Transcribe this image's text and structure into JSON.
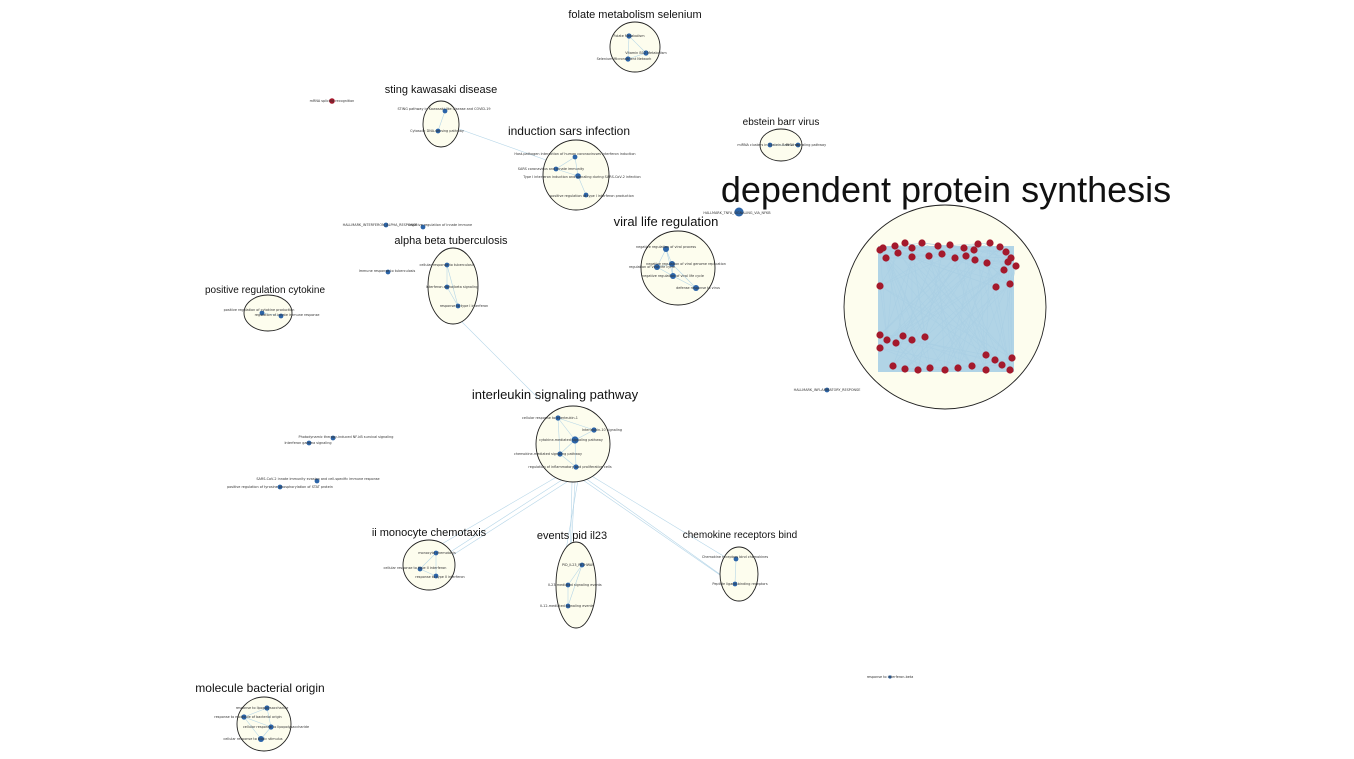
{
  "colors": {
    "background": "#ffffff",
    "cluster_fill": "#fdfdee",
    "cluster_stroke": "#222222",
    "edge": "#a9cfe4",
    "node_blue": "#2b64a8",
    "node_red": "#a4192c"
  },
  "clusters": [
    {
      "id": "folate",
      "label": "folate metabolism selenium",
      "nodes": [
        {
          "label": "Folate Metabolism"
        },
        {
          "label": "Vitamin B12 Metabolism"
        },
        {
          "label": "Selenium Micronutrient Network"
        }
      ]
    },
    {
      "id": "sting",
      "label": "sting kawasaki disease",
      "nodes": [
        {
          "label": "STING pathway in Kawasaki-like disease and COVID-19"
        },
        {
          "label": "Cytosolic DNA-sensing pathway"
        }
      ]
    },
    {
      "id": "sars",
      "label": "induction sars infection",
      "nodes": [
        {
          "label": "Host-pathogen interaction of human coronaviruses interferon induction"
        },
        {
          "label": "SARS coronavirus and innate immunity"
        },
        {
          "label": "Type I interferon induction and signaling during SARS-CoV-2 infection"
        },
        {
          "label": "positive regulation of type I interferon production"
        }
      ]
    },
    {
      "id": "ebv",
      "label": "ebstein barr virus",
      "nodes": [
        {
          "label": "miRNA clusters in Epstein-Barr virus"
        },
        {
          "label": "RIG-I signaling pathway"
        }
      ]
    },
    {
      "id": "dps",
      "label": "dependent protein synthesis",
      "nodes": []
    },
    {
      "id": "viral",
      "label": "viral life regulation",
      "nodes": [
        {
          "label": "negative regulation of viral process"
        },
        {
          "label": "regulation of viral life cycle"
        },
        {
          "label": "negative regulation of viral genome replication"
        },
        {
          "label": "negative regulation of viral life cycle"
        },
        {
          "label": "defense response to virus"
        }
      ]
    },
    {
      "id": "tb",
      "label": "alpha beta tuberculosis",
      "nodes": [
        {
          "label": "cellular response to tuberculosis"
        },
        {
          "label": "Interferon alpha/beta signaling"
        },
        {
          "label": "response to type I interferon"
        }
      ]
    },
    {
      "id": "cytokine",
      "label": "positive regulation cytokine",
      "nodes": [
        {
          "label": "positive regulation of cytokine production"
        },
        {
          "label": "regulation of innate immune response"
        }
      ]
    },
    {
      "id": "il",
      "label": "interleukin signaling pathway",
      "nodes": [
        {
          "label": "cellular response to interleukin-1"
        },
        {
          "label": "Interleukin-10 signaling"
        },
        {
          "label": "cytokine-mediated signaling pathway"
        },
        {
          "label": "chemokine-mediated signaling pathway"
        },
        {
          "label": "regulation of inflammatory and proliferative cells"
        }
      ]
    },
    {
      "id": "mono",
      "label": "ii monocyte chemotaxis",
      "nodes": [
        {
          "label": "monocyte chemotaxis"
        },
        {
          "label": "cellular response to type II interferon"
        },
        {
          "label": "response to type II interferon"
        }
      ]
    },
    {
      "id": "il23",
      "label": "events pid il23",
      "nodes": [
        {
          "label": "PID_IL23_PATHWAY"
        },
        {
          "label": "IL23-mediated signaling events"
        },
        {
          "label": "IL12-mediated signaling events"
        }
      ]
    },
    {
      "id": "chemo",
      "label": "chemokine receptors bind",
      "nodes": [
        {
          "label": "Chemokine receptors bind chemokines"
        },
        {
          "label": "Peptide ligand-binding receptors"
        }
      ]
    },
    {
      "id": "bact",
      "label": "molecule bacterial origin",
      "nodes": [
        {
          "label": "response to lipopolysaccharide"
        },
        {
          "label": "response to molecule of bacterial origin"
        },
        {
          "label": "cellular response to lipopolysaccharide"
        },
        {
          "label": "cellular response to biotic stimulus"
        }
      ]
    }
  ],
  "singletons": [
    {
      "label": "mRNA splicing recognition"
    },
    {
      "label": "HALLMARK_INTERFERON_ALPHA_RESPONSE"
    },
    {
      "label": "negative regulation of innate immune"
    },
    {
      "label": "Immune response to tuberculosis"
    },
    {
      "label": "HALLMARK_TNFA_SIGNALING_VIA_NFKB"
    },
    {
      "label": "HALLMARK_INFLAMMATORY_RESPONSE"
    },
    {
      "label": "Photodynamic therapy-induced NF-kB survival signaling"
    },
    {
      "label": "Interferon gamma signaling"
    },
    {
      "label": "SARS-CoV-2 innate immunity evasion and cell-specific immune response"
    },
    {
      "label": "positive regulation of tyrosine phosphorylation of STAT protein"
    },
    {
      "label": "response to interferon-beta"
    }
  ]
}
